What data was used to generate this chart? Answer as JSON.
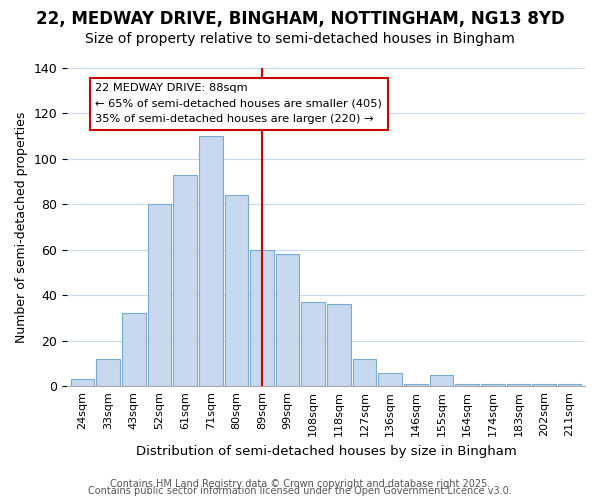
{
  "title": "22, MEDWAY DRIVE, BINGHAM, NOTTINGHAM, NG13 8YD",
  "subtitle": "Size of property relative to semi-detached houses in Bingham",
  "xlabel": "Distribution of semi-detached houses by size in Bingham",
  "ylabel": "Number of semi-detached properties",
  "categories": [
    "24sqm",
    "33sqm",
    "43sqm",
    "52sqm",
    "61sqm",
    "71sqm",
    "80sqm",
    "89sqm",
    "99sqm",
    "108sqm",
    "118sqm",
    "127sqm",
    "136sqm",
    "146sqm",
    "155sqm",
    "164sqm",
    "174sqm",
    "183sqm",
    "202sqm",
    "211sqm"
  ],
  "values": [
    3,
    12,
    32,
    80,
    93,
    110,
    84,
    60,
    58,
    37,
    36,
    12,
    6,
    1,
    5,
    1,
    1,
    1,
    1,
    1
  ],
  "bar_color": "#c8d8ee",
  "bar_edge_color": "#7aaace",
  "vline_x_index": 7,
  "vline_color": "#cc0000",
  "annotation_title": "22 MEDWAY DRIVE: 88sqm",
  "annotation_line1": "← 65% of semi-detached houses are smaller (405)",
  "annotation_line2": "35% of semi-detached houses are larger (220) →",
  "annotation_box_color": "#ffffff",
  "annotation_box_edge": "#cc0000",
  "ylim": [
    0,
    140
  ],
  "yticks": [
    0,
    20,
    40,
    60,
    80,
    100,
    120,
    140
  ],
  "footer1": "Contains HM Land Registry data © Crown copyright and database right 2025.",
  "footer2": "Contains public sector information licensed under the Open Government Licence v3.0.",
  "bg_color": "#ffffff",
  "grid_color": "#c8d8ee",
  "title_fontsize": 12,
  "subtitle_fontsize": 10,
  "xlabel_fontsize": 9.5,
  "ylabel_fontsize": 9,
  "footer_fontsize": 7
}
